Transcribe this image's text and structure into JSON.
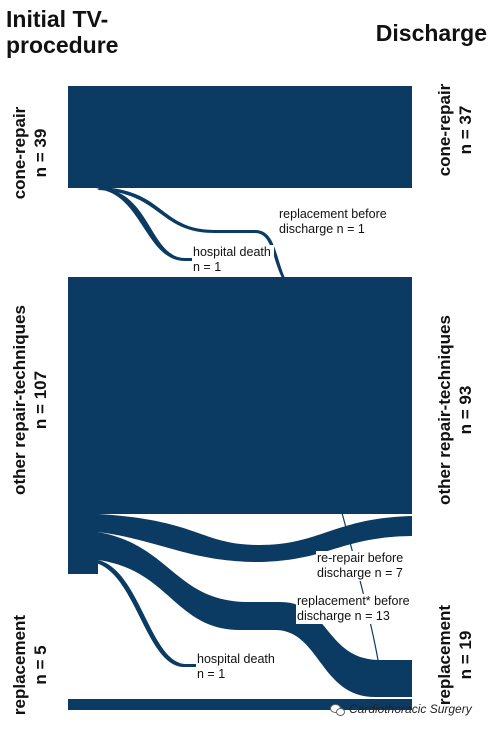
{
  "headers": {
    "left": "Initial TV-procedure",
    "right": "Discharge"
  },
  "left_nodes": [
    {
      "name": "cone-repair",
      "count": "n = 39"
    },
    {
      "name": "other repair-techniques",
      "count": "n = 107"
    },
    {
      "name": "replacement",
      "count": "n = 5"
    }
  ],
  "right_nodes": [
    {
      "name": "cone-repair",
      "count": "n = 37"
    },
    {
      "name": "other repair-techniques",
      "count": "n = 93"
    },
    {
      "name": "replacement",
      "count": "n = 19"
    }
  ],
  "annotations": {
    "cone_replacement": "replacement before discharge n = 1",
    "cone_death": "hospital death n = 1",
    "other_rerepair": "re-repair before discharge n = 7",
    "other_replacement": "replacement* before discharge n = 13",
    "other_death": "hospital death n = 1"
  },
  "flows": [
    {
      "from": "cone-repair",
      "to": "cone-repair",
      "value": 37
    },
    {
      "from": "cone-repair",
      "to": "replacement",
      "value": 1
    },
    {
      "from": "cone-repair",
      "to": "hospital death",
      "value": 1
    },
    {
      "from": "other repair-techniques",
      "to": "other repair-techniques",
      "value": 86
    },
    {
      "from": "other repair-techniques",
      "to": "other repair-techniques (re-repair)",
      "value": 7
    },
    {
      "from": "other repair-techniques",
      "to": "replacement",
      "value": 13
    },
    {
      "from": "other repair-techniques",
      "to": "hospital death",
      "value": 1
    },
    {
      "from": "replacement",
      "to": "replacement",
      "value": 5
    }
  ],
  "colors": {
    "flow": "#0b3b63",
    "text": "#111111"
  },
  "watermark": "Cardiothoracic Surgery"
}
